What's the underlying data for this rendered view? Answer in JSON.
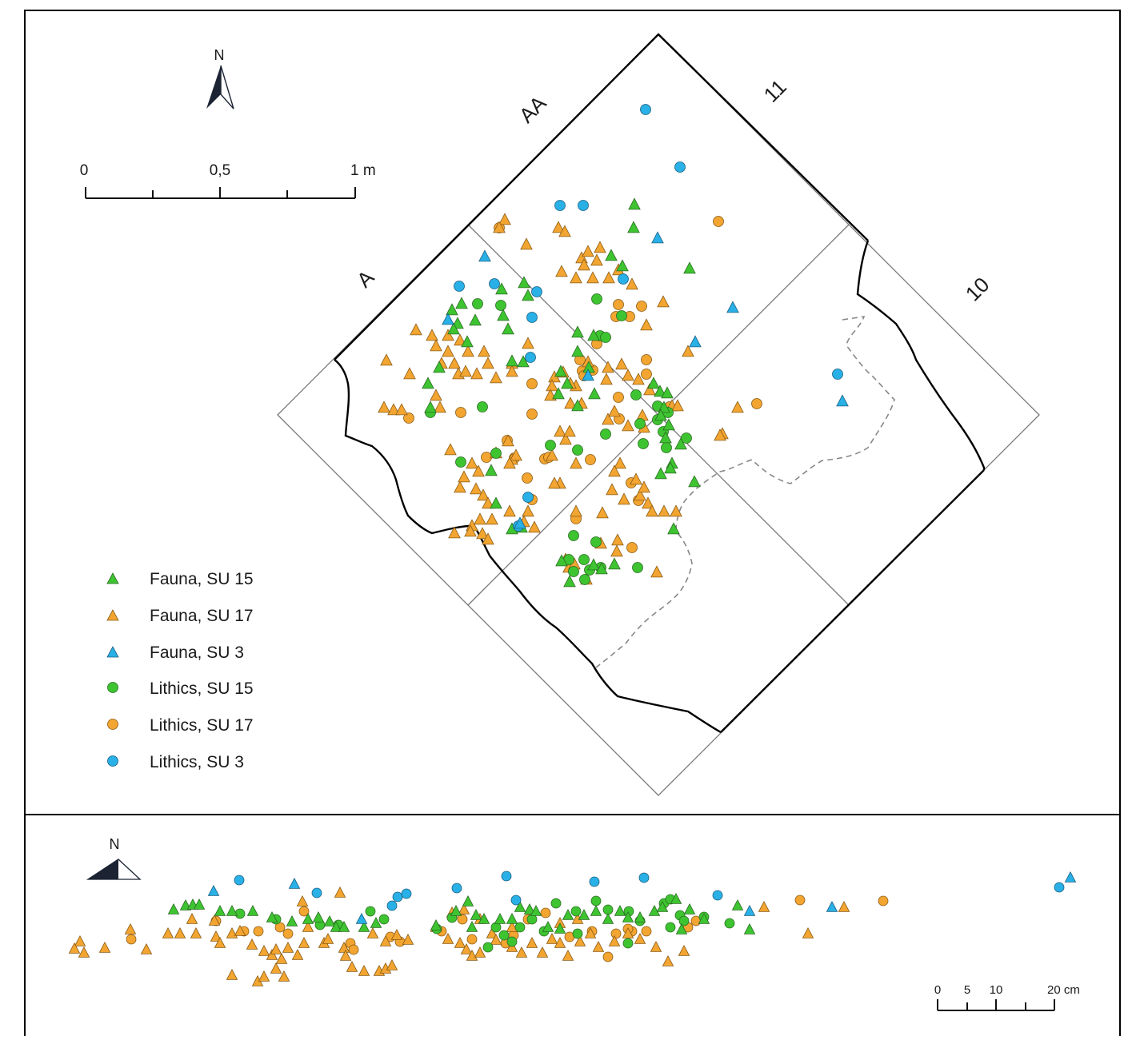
{
  "plan": {
    "north_label": "N",
    "scale": {
      "ticks": [
        "0",
        "0,5",
        "1 m"
      ]
    },
    "grid_labels": {
      "a": "A",
      "aa": "AA",
      "r11": "11",
      "r10": "10"
    }
  },
  "section": {
    "north_label": "N",
    "scale": {
      "ticks": [
        "0",
        "5",
        "10",
        "20 cm"
      ]
    }
  },
  "legend": {
    "items": [
      {
        "label": "Fauna, SU 15",
        "shape": "triangle",
        "color": "#3ec431"
      },
      {
        "label": "Fauna, SU 17",
        "shape": "triangle",
        "color": "#f2a531"
      },
      {
        "label": "Fauna, SU 3",
        "shape": "triangle",
        "color": "#29b0e6"
      },
      {
        "label": "Lithics, SU 15",
        "shape": "circle",
        "color": "#3ec431"
      },
      {
        "label": "Lithics, SU 17",
        "shape": "circle",
        "color": "#f2a531"
      },
      {
        "label": "Lithics, SU 3",
        "shape": "circle",
        "color": "#29b0e6"
      }
    ]
  },
  "chart_data": {
    "type": "scatter",
    "series": [
      {
        "name": "Fauna, SU 15",
        "shape": "triangle",
        "color": "#3ec431"
      },
      {
        "name": "Fauna, SU 17",
        "shape": "triangle",
        "color": "#f2a531"
      },
      {
        "name": "Fauna, SU 3",
        "shape": "triangle",
        "color": "#29b0e6"
      },
      {
        "name": "Lithics, SU 15",
        "shape": "circle",
        "color": "#3ec431"
      },
      {
        "name": "Lithics, SU 17",
        "shape": "circle",
        "color": "#f2a531"
      },
      {
        "name": "Lithics, SU 3",
        "shape": "circle",
        "color": "#29b0e6"
      }
    ]
  }
}
